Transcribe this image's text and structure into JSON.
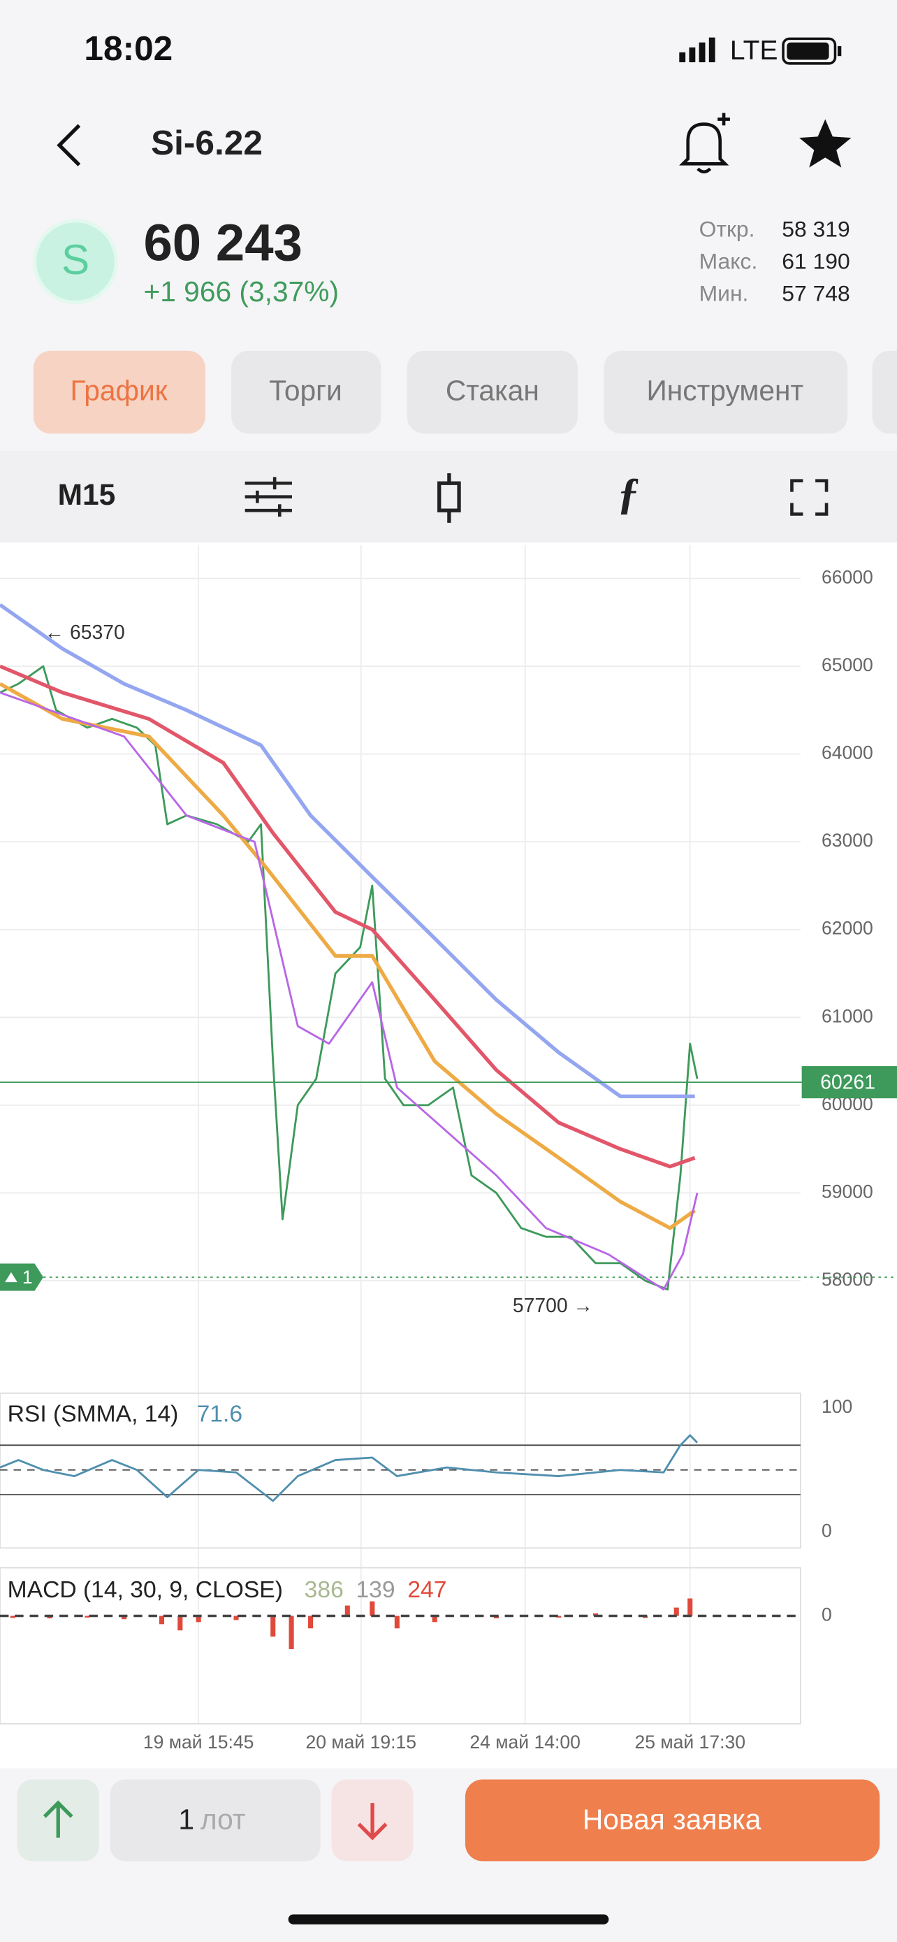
{
  "status_bar": {
    "time": "18:02",
    "network": "LTE"
  },
  "header": {
    "title": "Si-6.22"
  },
  "quote": {
    "avatar": "S",
    "price": "60 243",
    "change": "+1 966 (3,37%)",
    "stats": [
      {
        "label": "Откр.",
        "value": "58 319"
      },
      {
        "label": "Макс.",
        "value": "61 190"
      },
      {
        "label": "Мин.",
        "value": "57 748"
      }
    ]
  },
  "tabs": [
    "График",
    "Торги",
    "Стакан",
    "Инструмент"
  ],
  "toolbar": {
    "timeframe": "M15"
  },
  "chart_data": [
    {
      "type": "line",
      "xlim": [
        0,
        100
      ],
      "xticks": [
        {
          "value": 24.8,
          "label": "19 май 15:45"
        },
        {
          "value": 45.1,
          "label": "20 май 19:15"
        },
        {
          "value": 65.6,
          "label": "24 май 14:00"
        },
        {
          "value": 86.2,
          "label": "25 май 17:30"
        }
      ],
      "ylim": [
        56930,
        66380
      ],
      "yticks": [
        58000,
        59000,
        60000,
        61000,
        62000,
        63000,
        64000,
        65000,
        66000
      ],
      "grid": true,
      "series": [
        {
          "color": "#3d9a5a",
          "x": [
            0,
            2.3,
            5.4,
            7,
            10.9,
            14,
            17.1,
            19.4,
            20.9,
            23.3,
            27.1,
            31,
            32.6,
            34.1,
            35.3,
            37.2,
            39.5,
            41.9,
            45,
            46.5,
            48.1,
            50.4,
            53.5,
            56.6,
            58.9,
            62,
            65.1,
            68.2,
            71.3,
            74.4,
            77.5,
            80.6,
            83.4,
            85,
            86.2,
            87.1
          ],
          "values": [
            64700,
            64800,
            65000,
            64500,
            64300,
            64400,
            64300,
            64100,
            63200,
            63300,
            63200,
            63000,
            63200,
            60500,
            58700,
            60000,
            60300,
            61500,
            61800,
            62500,
            60300,
            60000,
            60000,
            60200,
            59200,
            59000,
            58600,
            58500,
            58500,
            58200,
            58200,
            58000,
            57900,
            59200,
            60700,
            60300
          ]
        },
        {
          "color": "#94a6f0",
          "x": [
            0,
            7.8,
            15.5,
            23.3,
            32.6,
            38.8,
            46.5,
            54.3,
            62,
            69.8,
            77.5,
            83.7,
            86.8
          ],
          "values": [
            65700,
            65200,
            64800,
            64500,
            64100,
            63300,
            62600,
            61900,
            61200,
            60600,
            60100,
            60100,
            60100
          ]
        },
        {
          "color": "#e2566a",
          "x": [
            0,
            7.8,
            18.6,
            27.9,
            34.1,
            41.9,
            46.5,
            54.3,
            62,
            69.8,
            77.5,
            83.7,
            86.8
          ],
          "values": [
            65000,
            64700,
            64400,
            63900,
            63100,
            62200,
            62000,
            61200,
            60400,
            59800,
            59500,
            59300,
            59400
          ]
        },
        {
          "color": "#eeaa44",
          "x": [
            0,
            7.8,
            18.6,
            27.9,
            33.3,
            41.9,
            46.5,
            54.3,
            62,
            69.8,
            77.5,
            83.7,
            86.8
          ],
          "values": [
            64800,
            64400,
            64200,
            63300,
            62700,
            61700,
            61700,
            60500,
            59900,
            59400,
            58900,
            58600,
            58800
          ]
        },
        {
          "color": "#b866e6",
          "x": [
            0,
            6.2,
            15.5,
            23.3,
            31.8,
            37.2,
            41.1,
            46.5,
            49.6,
            55.8,
            62,
            68.2,
            76,
            82.9,
            85.3,
            87.1
          ],
          "values": [
            64700,
            64500,
            64200,
            63300,
            63000,
            60900,
            60700,
            61400,
            60200,
            59700,
            59200,
            58600,
            58300,
            57900,
            58300,
            59000
          ]
        }
      ],
      "last_price": 60261,
      "order_line": {
        "price": 58040,
        "quantity": 1
      },
      "annotations": [
        {
          "x": 5.1,
          "value": 65370,
          "label": "← 65370",
          "side": "right"
        },
        {
          "x": 74.7,
          "value": 57700,
          "label": "57700 →",
          "side": "left"
        }
      ]
    },
    {
      "type": "line",
      "title": "RSI (SMMA, 14)",
      "current": 71.6,
      "xlim": [
        0,
        100
      ],
      "ylim": [
        0,
        100
      ],
      "yticks": [
        0,
        100
      ],
      "levels": [
        30,
        50,
        70
      ],
      "series": [
        {
          "color": "#4f8fae",
          "x": [
            0,
            2.3,
            5.4,
            9.3,
            14,
            17.1,
            20.9,
            24.8,
            29.5,
            34.1,
            37.2,
            41.9,
            46.5,
            49.6,
            55.8,
            62,
            69.8,
            77.5,
            82.9,
            85,
            86.2,
            87.1
          ],
          "values": [
            52,
            58,
            50,
            45,
            58,
            50,
            28,
            50,
            48,
            25,
            45,
            58,
            60,
            45,
            52,
            48,
            45,
            50,
            48,
            70,
            78,
            72
          ]
        }
      ]
    },
    {
      "type": "bar",
      "title": "MACD (14, 30, 9, CLOSE)",
      "readings": [
        {
          "value": 386,
          "color": "#a8b890"
        },
        {
          "value": 139,
          "color": "#999999"
        },
        {
          "value": 247,
          "color": "#e0493a"
        }
      ],
      "xlim": [
        0,
        100
      ],
      "ylim": [
        -2600,
        1100
      ],
      "yticks": [
        0
      ],
      "color": "#e0493a",
      "x": [
        1.6,
        6.2,
        10.9,
        15.5,
        20.2,
        22.5,
        24.8,
        29.5,
        34.1,
        36.4,
        38.8,
        43.4,
        46.5,
        49.6,
        54.3,
        62,
        69.8,
        74.4,
        80.6,
        84.5,
        86.2
      ],
      "values": [
        -50,
        -60,
        -40,
        -80,
        -200,
        -350,
        -150,
        -100,
        -500,
        -800,
        -300,
        250,
        350,
        -300,
        -150,
        -60,
        -40,
        60,
        -50,
        200,
        420
      ]
    }
  ],
  "order_bar": {
    "quantity": "1",
    "unit": "лот",
    "button": "Новая заявка"
  }
}
